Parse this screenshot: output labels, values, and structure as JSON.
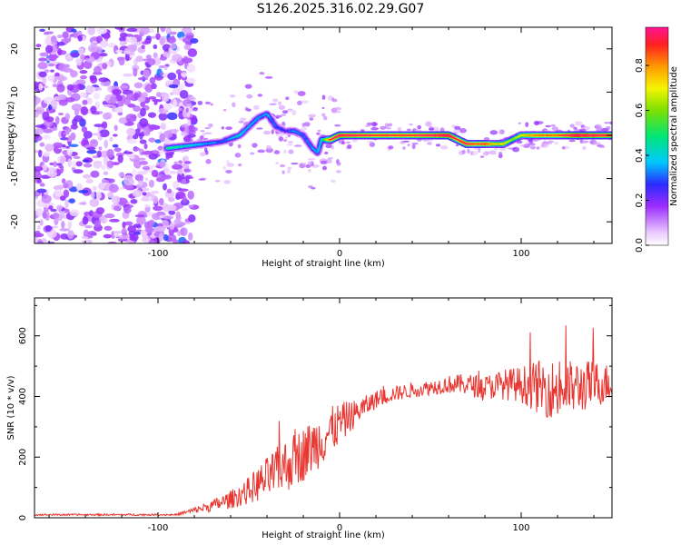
{
  "figure": {
    "title": "S126.2025.316.02.29.G07"
  },
  "chart_data": [
    {
      "type": "heatmap",
      "title": "S126.2025.316.02.29.G07",
      "xlabel": "Height of straight line (km)",
      "ylabel": "Frequency (Hz)",
      "xlim": [
        -168,
        150
      ],
      "ylim": [
        -25,
        25
      ],
      "x_ticks": [
        -100,
        0,
        100
      ],
      "x_tick_labels": [
        "-100",
        "0",
        "100"
      ],
      "y_ticks": [
        -20,
        -10,
        0,
        10,
        20
      ],
      "y_tick_labels": [
        "-20",
        "-10",
        "0",
        "10",
        "20"
      ],
      "colorbar": {
        "label": "Normalized spectral amplitude",
        "range": [
          0,
          0.97
        ],
        "ticks": [
          0.0,
          0.2,
          0.4,
          0.6,
          0.8
        ],
        "tick_labels": [
          "0.0",
          "0.2",
          "0.4",
          "0.6",
          "0.8"
        ]
      },
      "ridge": {
        "x": [
          -95,
          -85,
          -75,
          -65,
          -55,
          -50,
          -45,
          -40,
          -35,
          -30,
          -25,
          -20,
          -15,
          -12,
          -10,
          -5,
          0,
          10,
          20,
          40,
          55,
          60,
          65,
          70,
          75,
          80,
          85,
          90,
          95,
          100,
          110,
          120,
          130,
          140,
          150
        ],
        "y": [
          -3,
          -2.5,
          -2,
          -1.5,
          0,
          2,
          4,
          5,
          2,
          1,
          1,
          0,
          -3,
          -4,
          -1,
          -1,
          0,
          0,
          0,
          0,
          0,
          0,
          -1,
          -2,
          -2,
          -2,
          -2,
          -2,
          -1,
          0,
          0,
          0,
          0,
          0,
          0
        ],
        "amplitude": [
          0.4,
          0.35,
          0.3,
          0.25,
          0.35,
          0.3,
          0.3,
          0.3,
          0.25,
          0.2,
          0.3,
          0.25,
          0.3,
          0.3,
          0.35,
          0.75,
          0.85,
          0.8,
          0.75,
          0.75,
          0.85,
          0.9,
          0.75,
          0.8,
          0.7,
          0.75,
          0.6,
          0.6,
          0.5,
          0.6,
          0.7,
          0.7,
          0.9,
          0.85,
          0.8
        ]
      },
      "noise_region_x": [
        -168,
        -90
      ],
      "noise_amplitude_max": 0.25
    },
    {
      "type": "line",
      "xlabel": "Height of straight line (km)",
      "ylabel": "SNR (10 * v/v)",
      "xlim": [
        -168,
        150
      ],
      "ylim": [
        0,
        725
      ],
      "x_ticks": [
        -100,
        0,
        100
      ],
      "x_tick_labels": [
        "-100",
        "0",
        "100"
      ],
      "y_ticks": [
        0,
        200,
        400,
        600
      ],
      "y_tick_labels": [
        "0",
        "200",
        "400",
        "600"
      ],
      "series": [
        {
          "name": "SNR",
          "color": "#e8352f",
          "envelope_x": [
            -168,
            -90,
            -80,
            -70,
            -60,
            -50,
            -40,
            -30,
            -20,
            -10,
            0,
            10,
            20,
            30,
            40,
            50,
            60,
            70,
            80,
            90,
            100,
            110,
            120,
            130,
            140,
            150
          ],
          "envelope_y": [
            10,
            10,
            25,
            40,
            60,
            90,
            130,
            170,
            210,
            260,
            310,
            350,
            390,
            410,
            420,
            430,
            440,
            440,
            430,
            440,
            440,
            430,
            420,
            430,
            440,
            445
          ],
          "noise_amplitude": [
            3,
            3,
            10,
            20,
            30,
            45,
            70,
            90,
            90,
            90,
            70,
            40,
            30,
            25,
            25,
            25,
            30,
            35,
            40,
            50,
            60,
            90,
            100,
            90,
            80,
            60
          ]
        }
      ]
    }
  ]
}
